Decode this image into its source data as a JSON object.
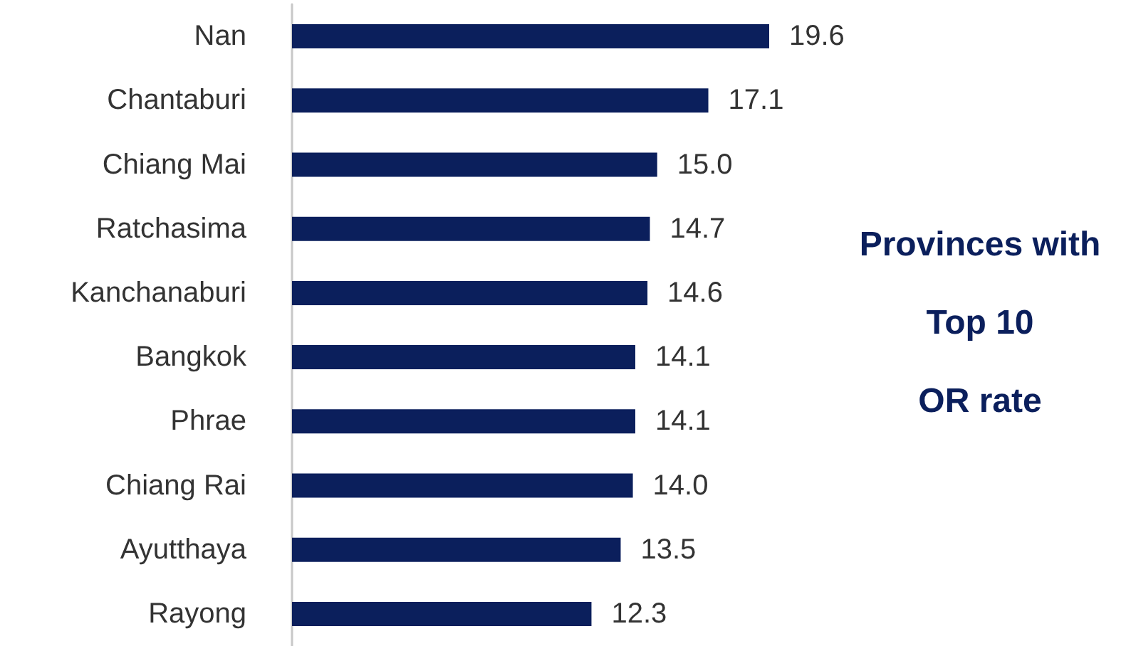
{
  "chart_data": {
    "type": "bar",
    "orientation": "horizontal",
    "title": "Provinces with\nTop 10\nOR rate",
    "categories": [
      "Nan",
      "Chantaburi",
      "Chiang Mai",
      "Ratchasima",
      "Kanchanaburi",
      "Bangkok",
      "Phrae",
      "Chiang Rai",
      "Ayutthaya",
      "Rayong"
    ],
    "values": [
      19.6,
      17.1,
      15.0,
      14.7,
      14.6,
      14.1,
      14.1,
      14.0,
      13.5,
      12.3
    ],
    "value_labels": [
      "19.6",
      "17.1",
      "15.0",
      "14.7",
      "14.6",
      "14.1",
      "14.1",
      "14.0",
      "13.5",
      "12.3"
    ],
    "color": "#0b1f5c"
  }
}
